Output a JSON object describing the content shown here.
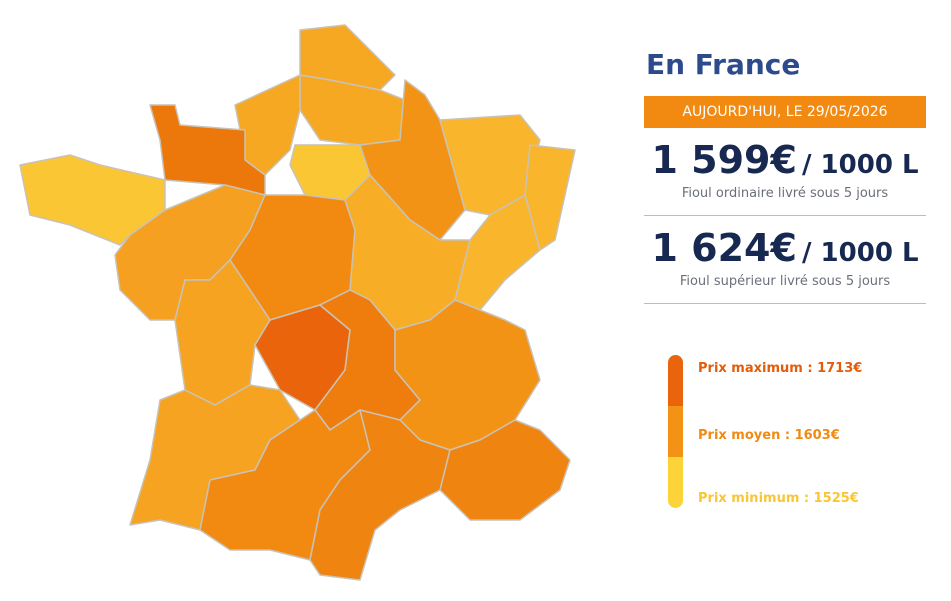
{
  "header": {
    "title": "En France"
  },
  "date_badge": "AUJOURD'HUI, LE 29/05/2026",
  "offers": [
    {
      "price": "1 599€",
      "unit": "/ 1000 L",
      "description": "Fioul ordinaire livré sous 5 jours"
    },
    {
      "price": "1 624€",
      "unit": "/ 1000 L",
      "description": "Fioul supérieur livré sous 5 jours"
    }
  ],
  "legend": [
    {
      "label": "Prix maximum : 1713€"
    },
    {
      "label": "Prix moyen : 1603€"
    },
    {
      "label": "Prix minimum : 1525€"
    }
  ]
}
